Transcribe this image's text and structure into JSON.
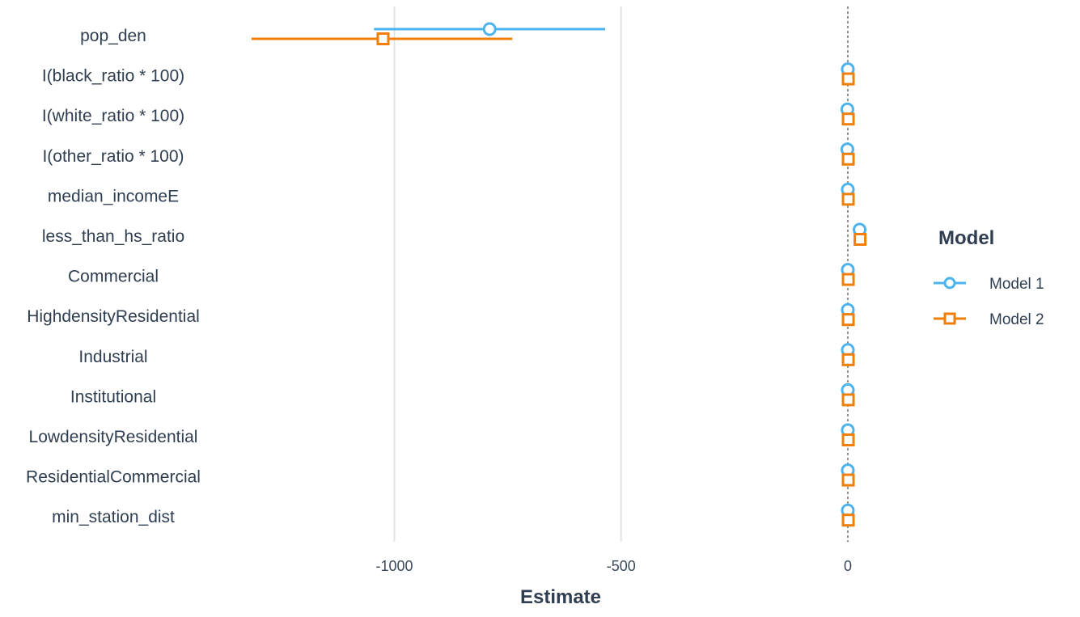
{
  "chart_data": {
    "type": "dot-whisker",
    "title": "",
    "xlabel": "Estimate",
    "ylabel": "",
    "xlim": [
      -1400,
      40
    ],
    "x_ticks": [
      -1000,
      -500,
      0
    ],
    "x_tick_labels": [
      "-1000",
      "-500",
      "0"
    ],
    "reference_line_x": 0,
    "grid": "vertical major",
    "legend": {
      "title": "Model",
      "placement": "right"
    },
    "categories": [
      "pop_den",
      "I(black_ratio * 100)",
      "I(white_ratio * 100)",
      "I(other_ratio * 100)",
      "median_incomeE",
      "less_than_hs_ratio",
      "Commercial",
      "HighdensityResidential",
      "Industrial",
      "Institutional",
      "LowdensityResidential",
      "ResidentialCommercial",
      "min_station_dist"
    ],
    "series": [
      {
        "name": "Model 1",
        "color": "#4db3ec",
        "marker": "circle",
        "estimates": [
          -790,
          0,
          -1,
          -1,
          0,
          26,
          0,
          0,
          0,
          0,
          0,
          0,
          0
        ],
        "ci_low": [
          -1045,
          -1,
          -2,
          -2,
          -1,
          25,
          -1,
          -1,
          -1,
          -1,
          -1,
          -1,
          -1
        ],
        "ci_high": [
          -535,
          1,
          0,
          0,
          1,
          27,
          1,
          1,
          1,
          1,
          1,
          1,
          1
        ]
      },
      {
        "name": "Model 2",
        "color": "#f07f09",
        "marker": "square",
        "estimates": [
          -1025,
          1,
          1,
          1,
          1,
          27,
          1,
          1,
          1,
          1,
          1,
          1,
          1
        ],
        "ci_low": [
          -1315,
          0,
          0,
          0,
          0,
          26,
          0,
          0,
          0,
          0,
          0,
          0,
          0
        ],
        "ci_high": [
          -740,
          2,
          2,
          2,
          2,
          28,
          2,
          2,
          2,
          2,
          2,
          2,
          2
        ]
      }
    ]
  }
}
